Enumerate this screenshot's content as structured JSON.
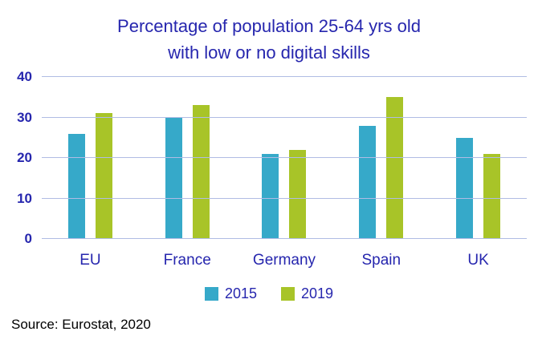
{
  "title": {
    "line1": "Percentage of population 25-64 yrs old",
    "line2": "with low or no digital skills"
  },
  "source": "Source: Eurostat, 2020",
  "colors": {
    "title_text": "#2626AE",
    "gridline": "#B0BCE4",
    "series_2015": "#36A9C9",
    "series_2019": "#A8C428"
  },
  "chart_data": {
    "type": "bar",
    "title": "Percentage of population 25-64 yrs old with low or no digital skills",
    "categories": [
      "EU",
      "France",
      "Germany",
      "Spain",
      "UK"
    ],
    "series": [
      {
        "name": "2015",
        "color": "#36A9C9",
        "values": [
          26,
          30,
          21,
          28,
          25
        ]
      },
      {
        "name": "2019",
        "color": "#A8C428",
        "values": [
          31,
          33,
          22,
          35,
          21
        ]
      }
    ],
    "xlabel": "",
    "ylabel": "",
    "ylim": [
      0,
      40
    ],
    "yticks": [
      0,
      10,
      20,
      30,
      40
    ],
    "grid": true,
    "legend_position": "bottom"
  }
}
